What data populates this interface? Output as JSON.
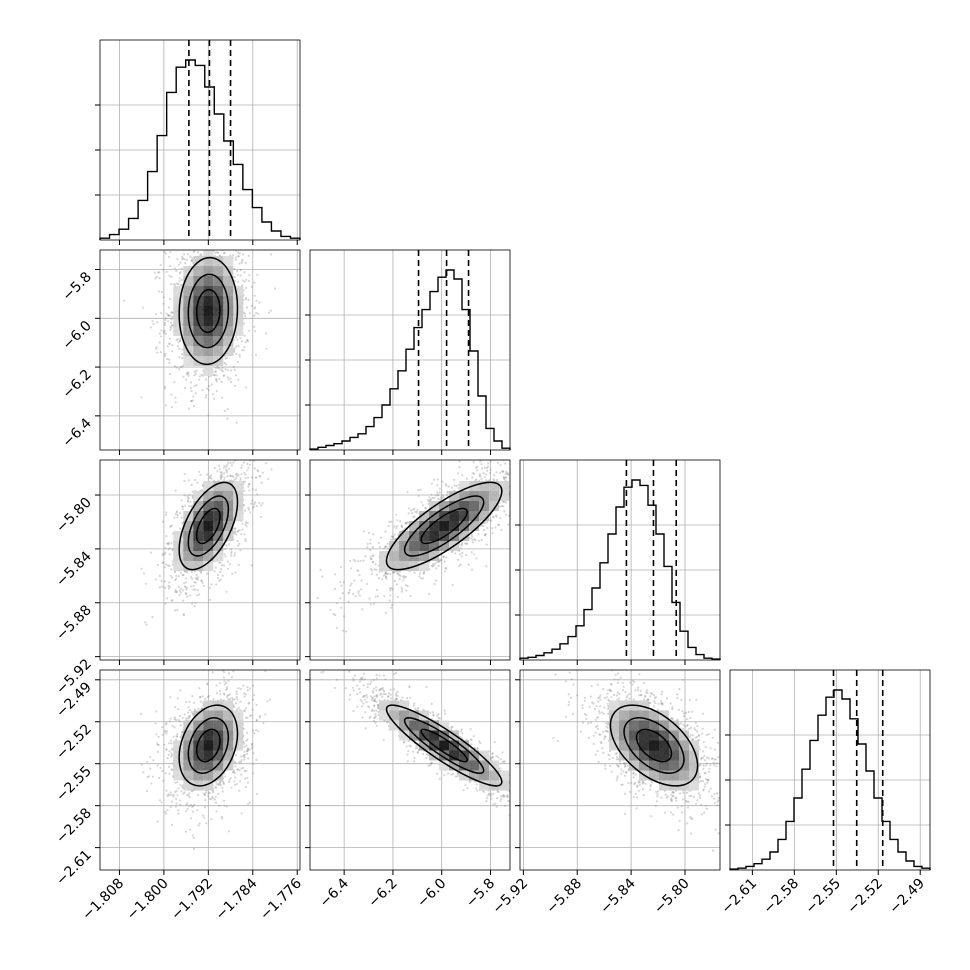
{
  "chart_data": {
    "type": "corner",
    "params": [
      {
        "ticks": [
          "−1.808",
          "−1.800",
          "−1.792",
          "−1.784",
          "−1.776"
        ],
        "tick_values": [
          -1.808,
          -1.8,
          -1.792,
          -1.784,
          -1.776
        ],
        "range": [
          -1.8115,
          -1.7755
        ],
        "quantiles": [
          -1.7955,
          -1.7918,
          -1.788
        ]
      },
      {
        "ticks": [
          "−6.4",
          "−6.2",
          "−6.0",
          "−5.8"
        ],
        "tick_values": [
          -6.4,
          -6.2,
          -6.0,
          -5.8
        ],
        "range": [
          -6.54,
          -5.72
        ],
        "quantiles": [
          -6.095,
          -5.98,
          -5.89
        ]
      },
      {
        "ticks": [
          "−5.92",
          "−5.88",
          "−5.84",
          "−5.80"
        ],
        "tick_values": [
          -5.92,
          -5.88,
          -5.84,
          -5.8
        ],
        "range": [
          -5.9225,
          -5.774
        ],
        "quantiles": [
          -5.8435,
          -5.8234,
          -5.8065
        ]
      },
      {
        "ticks": [
          "−2.61",
          "−2.58",
          "−2.55",
          "−2.52",
          "−2.49"
        ],
        "tick_values": [
          -2.61,
          -2.58,
          -2.55,
          -2.52,
          -2.49
        ],
        "range": [
          -2.626,
          -2.483
        ],
        "quantiles": [
          -2.552,
          -2.5354,
          -2.5168
        ]
      }
    ],
    "histograms": [
      {
        "counts": [
          0.01,
          0.03,
          0.06,
          0.12,
          0.22,
          0.38,
          0.58,
          0.82,
          0.96,
          1.0,
          0.97,
          0.85,
          0.7,
          0.55,
          0.42,
          0.28,
          0.18,
          0.1,
          0.05,
          0.02,
          0.01
        ]
      },
      {
        "counts": [
          0.005,
          0.015,
          0.025,
          0.035,
          0.05,
          0.07,
          0.09,
          0.13,
          0.18,
          0.25,
          0.34,
          0.44,
          0.56,
          0.68,
          0.78,
          0.88,
          0.96,
          1.0,
          0.95,
          0.78,
          0.55,
          0.3,
          0.12,
          0.05,
          0.01
        ]
      },
      {
        "counts": [
          0.01,
          0.015,
          0.025,
          0.04,
          0.06,
          0.09,
          0.13,
          0.19,
          0.28,
          0.4,
          0.54,
          0.7,
          0.85,
          0.96,
          1.0,
          0.97,
          0.86,
          0.7,
          0.52,
          0.32,
          0.16,
          0.07,
          0.03,
          0.01,
          0.005
        ]
      },
      {
        "counts": [
          0.005,
          0.01,
          0.02,
          0.035,
          0.06,
          0.1,
          0.17,
          0.27,
          0.4,
          0.56,
          0.72,
          0.86,
          0.96,
          1.0,
          0.95,
          0.84,
          0.7,
          0.55,
          0.4,
          0.27,
          0.17,
          0.1,
          0.05,
          0.02,
          0.01
        ]
      }
    ],
    "pairs": [
      {
        "x": 0,
        "y": 1,
        "center": [
          -1.792,
          -5.97
        ],
        "sd": [
          0.003,
          0.125
        ],
        "rho": 0.05
      },
      {
        "x": 0,
        "y": 2,
        "center": [
          -1.792,
          -5.823
        ],
        "sd": [
          0.003,
          0.0185
        ],
        "rho": 0.55
      },
      {
        "x": 1,
        "y": 2,
        "center": [
          -5.99,
          -5.823
        ],
        "sd": [
          0.135,
          0.0185
        ],
        "rho": 0.8
      },
      {
        "x": 0,
        "y": 3,
        "center": [
          -1.792,
          -2.537
        ],
        "sd": [
          0.003,
          0.0165
        ],
        "rho": 0.3
      },
      {
        "x": 1,
        "y": 3,
        "center": [
          -5.99,
          -2.537
        ],
        "sd": [
          0.135,
          0.0165
        ],
        "rho": -0.9
      },
      {
        "x": 2,
        "y": 3,
        "center": [
          -5.823,
          -2.537
        ],
        "sd": [
          0.0185,
          0.0165
        ],
        "rho": -0.5
      }
    ]
  }
}
